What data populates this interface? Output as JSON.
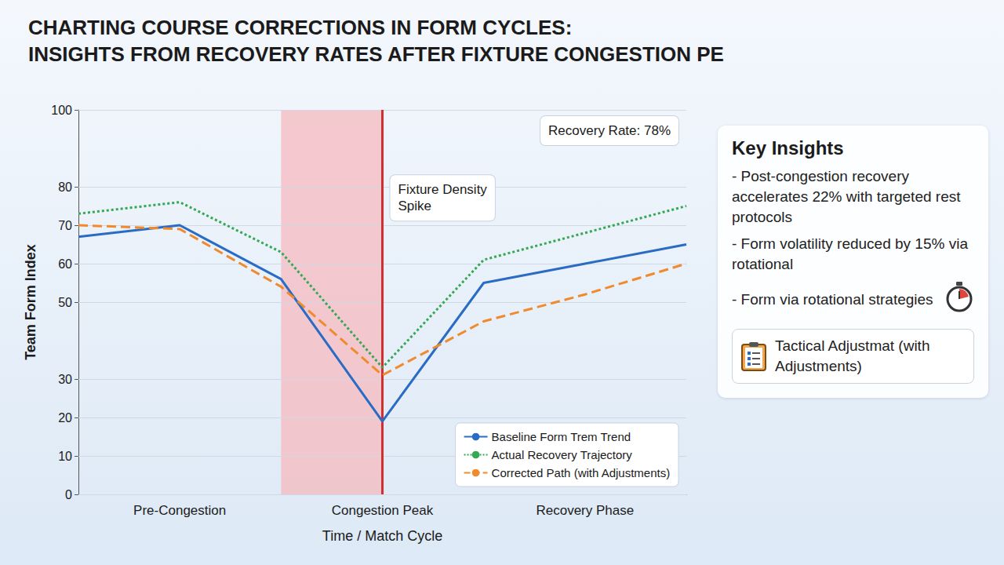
{
  "title": [
    "CHARTING COURSE CORRECTIONS IN FORM CYCLES:",
    "INSIGHTS FROM RECOVERY RATES AFTER FIXTURE CONGESTION PE"
  ],
  "chart_data": {
    "type": "line",
    "x_label": "Time / Match Cycle",
    "y_label": "Team Form Index",
    "categories": [
      null,
      "Pre-Congestion",
      null,
      "Congestion Peak",
      null,
      "Recovery Phase",
      null
    ],
    "series": [
      {
        "name": "Baseline Form Trem Trend",
        "color": "#2a6cc4",
        "line_style": "solid",
        "marker": "none",
        "values": [
          67,
          70,
          56,
          19,
          55,
          60,
          65
        ]
      },
      {
        "name": "Actual Recovery Trajectory",
        "color": "#34a853",
        "line_style": "dotted",
        "marker": "none",
        "values": [
          73,
          76,
          63,
          33,
          61,
          68,
          75
        ]
      },
      {
        "name": "Corrected Path (with Adjustments)",
        "color": "#f08a2c",
        "line_style": "dashed",
        "marker": "none",
        "values": [
          70,
          69,
          54,
          31,
          45,
          52,
          60
        ]
      }
    ],
    "ylim": [
      0,
      100
    ],
    "yticks": [
      0,
      10,
      20,
      30,
      50,
      60,
      70,
      80,
      100
    ],
    "grid": true,
    "legend": "lower right",
    "shaded_region": {
      "x": [
        2,
        3
      ],
      "color": "#f5b9bf"
    },
    "vertical_line": {
      "x": 3,
      "color": "#d32f2f"
    },
    "annotations": [
      "Recovery Rate: 78%",
      "Fixture Density Spike"
    ]
  },
  "key_insights": {
    "title": "Key Insights",
    "items": [
      "- Post-congestion recovery accelerates 22% with targeted rest protocols",
      "- Form volatility reduced by 15% via rotational",
      "- Form via rotational strategies"
    ],
    "footer": "Tactical Adjustmat (with Adjustments)"
  }
}
